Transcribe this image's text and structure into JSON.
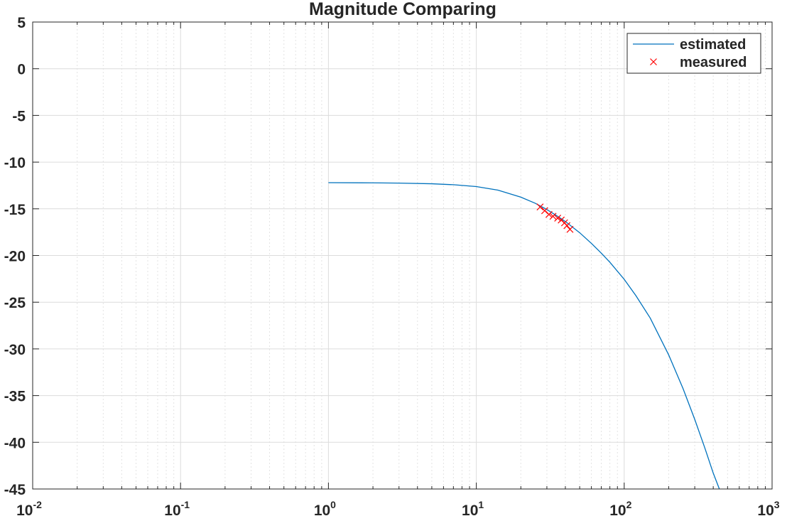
{
  "chart_data": {
    "type": "line",
    "title": "Magnitude Comparing",
    "xlabel": "",
    "ylabel": "",
    "x_scale": "log",
    "xlim": [
      0.01,
      1000
    ],
    "ylim": [
      -45,
      5
    ],
    "grid": true,
    "minor_grid_x": true,
    "legend_position": "top-right",
    "x_ticks": [
      {
        "base": "10",
        "exp": "-2",
        "value": 0.01
      },
      {
        "base": "10",
        "exp": "-1",
        "value": 0.1
      },
      {
        "base": "10",
        "exp": "0",
        "value": 1
      },
      {
        "base": "10",
        "exp": "1",
        "value": 10
      },
      {
        "base": "10",
        "exp": "2",
        "value": 100
      },
      {
        "base": "10",
        "exp": "3",
        "value": 1000
      }
    ],
    "y_ticks": [
      "5",
      "0",
      "-5",
      "-10",
      "-15",
      "-20",
      "-25",
      "-30",
      "-35",
      "-40",
      "-45"
    ],
    "series": [
      {
        "name": "estimated",
        "style": "line",
        "color": "#0072bd",
        "x": [
          1,
          2,
          3,
          5,
          7,
          10,
          14,
          20,
          25,
          30,
          35,
          40,
          50,
          60,
          70,
          80,
          100,
          120,
          150,
          200,
          250,
          300,
          350,
          400,
          450,
          460
        ],
        "y": [
          -12.2,
          -12.22,
          -12.25,
          -12.32,
          -12.42,
          -12.62,
          -13.0,
          -13.75,
          -14.4,
          -15.08,
          -15.74,
          -16.36,
          -17.56,
          -18.7,
          -19.75,
          -20.72,
          -22.55,
          -24.3,
          -26.7,
          -30.65,
          -34.25,
          -37.55,
          -40.55,
          -43.3,
          -45.4,
          -45.8
        ]
      },
      {
        "name": "measured",
        "style": "marker",
        "marker": "x",
        "color": "#ff0000",
        "x": [
          27,
          29,
          31,
          33,
          35.5,
          37.5,
          39.5,
          41,
          43
        ],
        "y": [
          -14.8,
          -15.2,
          -15.6,
          -15.8,
          -16.0,
          -16.2,
          -16.5,
          -16.8,
          -17.2
        ]
      }
    ]
  }
}
